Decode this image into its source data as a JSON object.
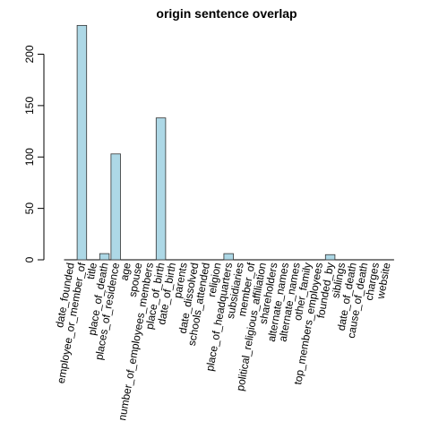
{
  "chart_data": {
    "type": "bar",
    "title": "origin sentence overlap",
    "xlabel": "",
    "ylabel": "",
    "ylim": [
      0,
      230
    ],
    "yticks": [
      0,
      50,
      100,
      150,
      200
    ],
    "grid": false,
    "bar_color": "#add8e6",
    "categories": [
      "date_founded",
      "employee_or_member_of",
      "title",
      "place_of_death",
      "places_of_residence",
      "age",
      "spouse",
      "number_of_employees_members",
      "place_of_birth",
      "date_of_birth",
      "parents",
      "date_dissolved",
      "schools_attended",
      "religion",
      "place_of_headquarters",
      "subsidiaries",
      "member_of",
      "political_religious_affiliation",
      "shareholders",
      "alternate_names",
      "alternate_names",
      "other_family",
      "top_members_employees",
      "founded_by",
      "siblings",
      "date_of_death",
      "cause_of_death",
      "charges",
      "website"
    ],
    "values": [
      0,
      228,
      0,
      6,
      103,
      0,
      0,
      0,
      138,
      0,
      0,
      0,
      0,
      0,
      6,
      0,
      0,
      0,
      0,
      0,
      0,
      0,
      0,
      5,
      0,
      0,
      0,
      0,
      0
    ]
  }
}
